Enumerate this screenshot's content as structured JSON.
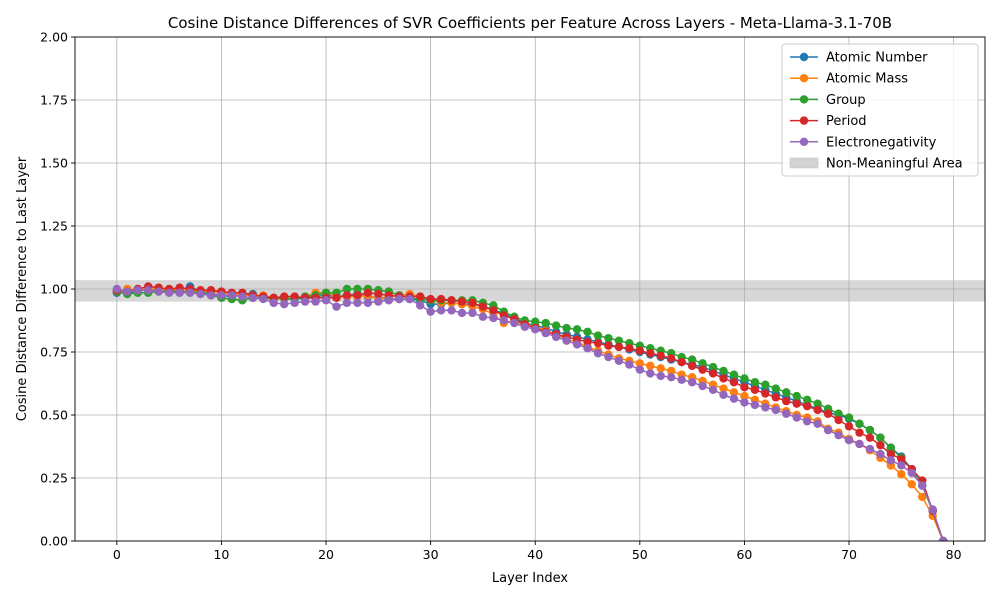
{
  "chart_data": {
    "type": "line",
    "title": "Cosine Distance Differences of SVR Coefficients per Feature Across Layers - Meta-Llama-3.1-70B",
    "xlabel": "Layer Index",
    "ylabel": "Cosine Distance Difference to Last Layer",
    "xlim": [
      -4,
      83
    ],
    "ylim": [
      0,
      2.0
    ],
    "xticks": [
      0,
      10,
      20,
      30,
      40,
      50,
      60,
      70,
      80
    ],
    "yticks": [
      0.0,
      0.25,
      0.5,
      0.75,
      1.0,
      1.25,
      1.5,
      1.75,
      2.0
    ],
    "ytick_labels": [
      "0.00",
      "0.25",
      "0.50",
      "0.75",
      "1.00",
      "1.25",
      "1.50",
      "1.75",
      "2.00"
    ],
    "grid": true,
    "legend_position": "top-right",
    "band": {
      "name": "Non-Meaningful Area",
      "y0": 0.95,
      "y1": 1.035,
      "color": "#d3d3d3"
    },
    "series": [
      {
        "name": "Atomic Number",
        "color": "#1f77b4",
        "values": [
          0.985,
          0.985,
          0.99,
          1.0,
          0.995,
          0.99,
          0.995,
          1.01,
          0.99,
          0.98,
          0.975,
          0.97,
          0.98,
          0.98,
          0.97,
          0.965,
          0.96,
          0.96,
          0.965,
          0.97,
          0.975,
          0.97,
          0.975,
          0.98,
          0.97,
          0.965,
          0.96,
          0.96,
          0.96,
          0.955,
          0.94,
          0.94,
          0.945,
          0.94,
          0.94,
          0.93,
          0.92,
          0.9,
          0.885,
          0.865,
          0.855,
          0.845,
          0.83,
          0.82,
          0.81,
          0.8,
          0.79,
          0.78,
          0.77,
          0.76,
          0.75,
          0.74,
          0.73,
          0.72,
          0.71,
          0.7,
          0.69,
          0.675,
          0.66,
          0.645,
          0.63,
          0.615,
          0.6,
          0.585,
          0.57,
          0.555,
          0.54,
          0.525,
          0.51,
          0.5,
          0.485,
          0.465,
          0.44,
          0.41,
          0.37,
          0.335,
          0.285,
          0.22,
          0.12,
          0.0
        ]
      },
      {
        "name": "Atomic Mass",
        "color": "#ff7f0e",
        "values": [
          0.99,
          1.0,
          0.995,
          1.0,
          1.0,
          0.995,
          1.0,
          0.995,
          0.99,
          0.99,
          0.985,
          0.98,
          0.975,
          0.975,
          0.975,
          0.965,
          0.96,
          0.965,
          0.97,
          0.985,
          0.985,
          0.97,
          0.97,
          0.97,
          0.975,
          0.96,
          0.97,
          0.975,
          0.98,
          0.97,
          0.955,
          0.945,
          0.945,
          0.94,
          0.93,
          0.92,
          0.9,
          0.865,
          0.87,
          0.86,
          0.85,
          0.835,
          0.82,
          0.8,
          0.79,
          0.77,
          0.755,
          0.74,
          0.725,
          0.715,
          0.705,
          0.695,
          0.685,
          0.675,
          0.66,
          0.65,
          0.635,
          0.62,
          0.605,
          0.59,
          0.575,
          0.56,
          0.545,
          0.53,
          0.515,
          0.5,
          0.49,
          0.475,
          0.445,
          0.43,
          0.405,
          0.385,
          0.36,
          0.33,
          0.3,
          0.265,
          0.225,
          0.175,
          0.1,
          0.0
        ]
      },
      {
        "name": "Group",
        "color": "#2ca02c",
        "values": [
          0.99,
          0.98,
          0.985,
          0.985,
          0.99,
          0.99,
          0.99,
          0.99,
          0.985,
          0.975,
          0.965,
          0.96,
          0.955,
          0.965,
          0.965,
          0.96,
          0.965,
          0.96,
          0.97,
          0.975,
          0.985,
          0.985,
          1.0,
          1.0,
          1.0,
          0.995,
          0.99,
          0.975,
          0.965,
          0.96,
          0.955,
          0.955,
          0.955,
          0.955,
          0.955,
          0.945,
          0.935,
          0.91,
          0.89,
          0.875,
          0.87,
          0.865,
          0.855,
          0.845,
          0.84,
          0.83,
          0.815,
          0.805,
          0.795,
          0.785,
          0.775,
          0.765,
          0.755,
          0.745,
          0.73,
          0.72,
          0.705,
          0.69,
          0.675,
          0.66,
          0.645,
          0.63,
          0.62,
          0.605,
          0.59,
          0.575,
          0.56,
          0.545,
          0.525,
          0.505,
          0.49,
          0.465,
          0.44,
          0.41,
          0.37,
          0.33,
          0.285,
          0.22,
          0.12,
          0.0
        ]
      },
      {
        "name": "Period",
        "color": "#d62728",
        "values": [
          0.995,
          0.99,
          1.0,
          1.01,
          1.005,
          1.0,
          1.005,
          1.0,
          0.995,
          0.995,
          0.99,
          0.985,
          0.985,
          0.975,
          0.97,
          0.965,
          0.97,
          0.97,
          0.965,
          0.965,
          0.965,
          0.965,
          0.975,
          0.975,
          0.985,
          0.98,
          0.975,
          0.97,
          0.97,
          0.97,
          0.96,
          0.96,
          0.955,
          0.95,
          0.945,
          0.93,
          0.915,
          0.895,
          0.88,
          0.86,
          0.845,
          0.83,
          0.82,
          0.81,
          0.8,
          0.79,
          0.785,
          0.775,
          0.77,
          0.765,
          0.755,
          0.745,
          0.735,
          0.725,
          0.71,
          0.695,
          0.68,
          0.665,
          0.645,
          0.63,
          0.61,
          0.6,
          0.585,
          0.57,
          0.555,
          0.545,
          0.535,
          0.52,
          0.505,
          0.48,
          0.455,
          0.43,
          0.41,
          0.38,
          0.345,
          0.325,
          0.285,
          0.24,
          0.12,
          0.0
        ]
      },
      {
        "name": "Electronegativity",
        "color": "#9467bd",
        "values": [
          1.0,
          0.99,
          0.995,
          0.995,
          0.99,
          0.985,
          0.985,
          0.985,
          0.98,
          0.975,
          0.975,
          0.975,
          0.97,
          0.965,
          0.96,
          0.945,
          0.94,
          0.945,
          0.95,
          0.95,
          0.955,
          0.93,
          0.945,
          0.945,
          0.945,
          0.95,
          0.955,
          0.96,
          0.96,
          0.935,
          0.91,
          0.915,
          0.915,
          0.905,
          0.905,
          0.89,
          0.885,
          0.875,
          0.865,
          0.85,
          0.84,
          0.825,
          0.81,
          0.795,
          0.78,
          0.765,
          0.745,
          0.73,
          0.715,
          0.7,
          0.68,
          0.665,
          0.655,
          0.65,
          0.64,
          0.63,
          0.615,
          0.6,
          0.58,
          0.565,
          0.55,
          0.54,
          0.53,
          0.52,
          0.505,
          0.49,
          0.475,
          0.465,
          0.44,
          0.42,
          0.4,
          0.385,
          0.365,
          0.345,
          0.32,
          0.3,
          0.27,
          0.22,
          0.125,
          0.0
        ]
      }
    ]
  }
}
